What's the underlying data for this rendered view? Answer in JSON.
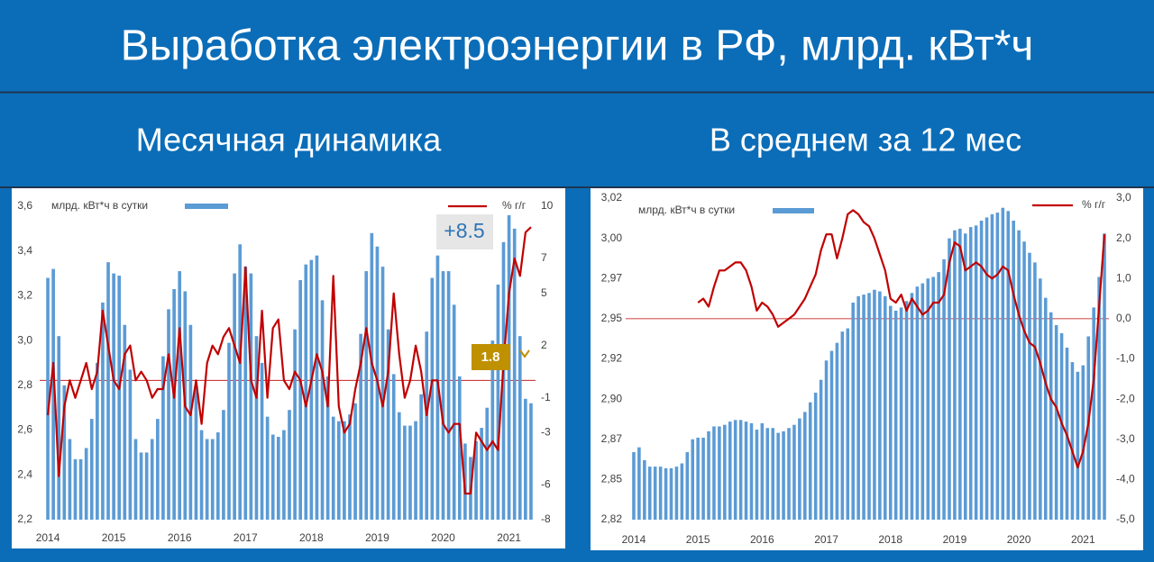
{
  "title": "Выработка электроэнергии в РФ, млрд. кВт*ч",
  "chart_data": [
    {
      "type": "combo",
      "title": "Месячная динамика",
      "categories": [
        "2014",
        null,
        null,
        null,
        null,
        null,
        null,
        null,
        null,
        null,
        null,
        null,
        "2015",
        null,
        null,
        null,
        null,
        null,
        null,
        null,
        null,
        null,
        null,
        null,
        "2016",
        null,
        null,
        null,
        null,
        null,
        null,
        null,
        null,
        null,
        null,
        null,
        "2017",
        null,
        null,
        null,
        null,
        null,
        null,
        null,
        null,
        null,
        null,
        null,
        "2018",
        null,
        null,
        null,
        null,
        null,
        null,
        null,
        null,
        null,
        null,
        null,
        "2019",
        null,
        null,
        null,
        null,
        null,
        null,
        null,
        null,
        null,
        null,
        null,
        "2020",
        null,
        null,
        null,
        null,
        null,
        null,
        null,
        null,
        null,
        null,
        null,
        "2021",
        null,
        null,
        null,
        null
      ],
      "series": [
        {
          "name": "млрд. кВт*ч в сутки",
          "type": "bar",
          "color": "#5b9bd5",
          "values": [
            3.28,
            3.32,
            3.02,
            2.8,
            2.56,
            2.47,
            2.47,
            2.52,
            2.65,
            2.9,
            3.17,
            3.35,
            3.3,
            3.29,
            3.07,
            2.87,
            2.56,
            2.5,
            2.5,
            2.56,
            2.65,
            2.93,
            3.14,
            3.23,
            3.31,
            3.22,
            3.07,
            2.8,
            2.6,
            2.56,
            2.56,
            2.59,
            2.69,
            2.99,
            3.3,
            3.43,
            3.33,
            3.3,
            3.02,
            2.9,
            2.66,
            2.58,
            2.57,
            2.6,
            2.69,
            3.05,
            3.27,
            3.34,
            3.36,
            3.38,
            3.18,
            2.84,
            2.66,
            2.64,
            2.64,
            2.67,
            2.72,
            3.03,
            3.31,
            3.48,
            3.42,
            3.33,
            3.05,
            2.85,
            2.68,
            2.62,
            2.62,
            2.64,
            2.76,
            3.04,
            3.28,
            3.38,
            3.31,
            3.31,
            3.16,
            2.84,
            2.54,
            2.48,
            2.55,
            2.61,
            2.7,
            3.0,
            3.25,
            3.44,
            3.56,
            3.5,
            3.02,
            2.74,
            2.72
          ]
        },
        {
          "name": "% г/г",
          "type": "line",
          "axis": "y2",
          "color": "#c00000",
          "values": [
            -2,
            1,
            -5.5,
            -1.5,
            0,
            -1,
            0,
            1,
            -0.5,
            0.5,
            4,
            2,
            0,
            -0.5,
            1.5,
            2,
            0,
            0.5,
            0,
            -1,
            -0.5,
            -0.5,
            1.5,
            -1,
            3,
            -1.5,
            -2,
            0,
            -2.5,
            1,
            2,
            1.5,
            2.5,
            3,
            2,
            1,
            6.5,
            0,
            -1,
            4,
            -1,
            3,
            3.5,
            0,
            -0.5,
            0.5,
            0,
            -1.5,
            0,
            1.5,
            0.5,
            -1.5,
            6,
            -1.5,
            -3,
            -2.5,
            -0.5,
            1,
            3,
            1,
            0,
            -1.5,
            0.5,
            5,
            1.5,
            -1,
            0,
            2,
            0.5,
            -2,
            0,
            0,
            -2.5,
            -3,
            -2.5,
            -2.5,
            -6.5,
            -6.5,
            -3,
            -3.5,
            -4,
            -3.5,
            -4,
            1,
            5,
            7,
            6,
            8.5,
            8.8
          ]
        }
      ],
      "ylim": [
        2.2,
        3.6
      ],
      "yticks": [
        {
          "value": 2.2,
          "label": "2,2"
        },
        {
          "value": 2.4,
          "label": "2,4"
        },
        {
          "value": 2.6,
          "label": "2,6"
        },
        {
          "value": 2.8,
          "label": "2,8"
        },
        {
          "value": 3.0,
          "label": "3,0"
        },
        {
          "value": 3.2,
          "label": "3,2"
        },
        {
          "value": 3.4,
          "label": "3,4"
        },
        {
          "value": 3.6,
          "label": "3,6"
        }
      ],
      "y2lim": [
        -8,
        10
      ],
      "y2ticks": [
        -8,
        -6,
        -3,
        -1,
        2,
        5,
        7,
        10
      ],
      "annotations": [
        "+8.5",
        "1.8"
      ]
    },
    {
      "type": "combo",
      "title": "В среднем за 12 мес",
      "categories": [
        "2014",
        null,
        null,
        null,
        null,
        null,
        null,
        null,
        null,
        null,
        null,
        null,
        "2015",
        null,
        null,
        null,
        null,
        null,
        null,
        null,
        null,
        null,
        null,
        null,
        "2016",
        null,
        null,
        null,
        null,
        null,
        null,
        null,
        null,
        null,
        null,
        null,
        "2017",
        null,
        null,
        null,
        null,
        null,
        null,
        null,
        null,
        null,
        null,
        null,
        "2018",
        null,
        null,
        null,
        null,
        null,
        null,
        null,
        null,
        null,
        null,
        null,
        "2019",
        null,
        null,
        null,
        null,
        null,
        null,
        null,
        null,
        null,
        null,
        null,
        "2020",
        null,
        null,
        null,
        null,
        null,
        null,
        null,
        null,
        null,
        null,
        null,
        "2021",
        null,
        null,
        null,
        null
      ],
      "series": [
        {
          "name": "млрд. кВт*ч в сутки",
          "type": "bar",
          "color": "#5b9bd5",
          "values": [
            2.862,
            2.865,
            2.857,
            2.853,
            2.853,
            2.853,
            2.852,
            2.852,
            2.853,
            2.855,
            2.862,
            2.87,
            2.871,
            2.871,
            2.875,
            2.878,
            2.878,
            2.879,
            2.881,
            2.882,
            2.882,
            2.881,
            2.88,
            2.876,
            2.88,
            2.877,
            2.877,
            2.874,
            2.875,
            2.877,
            2.879,
            2.883,
            2.887,
            2.893,
            2.899,
            2.907,
            2.919,
            2.925,
            2.93,
            2.937,
            2.939,
            2.955,
            2.959,
            2.96,
            2.961,
            2.963,
            2.962,
            2.959,
            2.953,
            2.95,
            2.952,
            2.956,
            2.961,
            2.965,
            2.967,
            2.97,
            2.971,
            2.974,
            2.982,
            2.995,
            3.0,
            3.001,
            2.998,
            3.002,
            3.003,
            3.006,
            3.008,
            3.01,
            3.011,
            3.014,
            3.012,
            3.006,
            3.0,
            2.993,
            2.986,
            2.98,
            2.97,
            2.958,
            2.949,
            2.941,
            2.936,
            2.927,
            2.918,
            2.912,
            2.916,
            2.934,
            2.952,
            2.971,
            2.998
          ]
        },
        {
          "name": "% г/г",
          "type": "line",
          "axis": "y2",
          "color": "#c00000",
          "values": [
            null,
            null,
            null,
            null,
            null,
            null,
            null,
            null,
            null,
            null,
            null,
            null,
            0.4,
            0.5,
            0.3,
            0.8,
            1.2,
            1.2,
            1.3,
            1.4,
            1.4,
            1.2,
            0.8,
            0.2,
            0.4,
            0.3,
            0.1,
            -0.2,
            -0.1,
            0.0,
            0.1,
            0.3,
            0.5,
            0.8,
            1.1,
            1.7,
            2.1,
            2.1,
            1.5,
            2.0,
            2.6,
            2.7,
            2.6,
            2.4,
            2.3,
            2.0,
            1.6,
            1.2,
            0.5,
            0.4,
            0.6,
            0.2,
            0.5,
            0.3,
            0.1,
            0.2,
            0.4,
            0.4,
            0.6,
            1.4,
            1.9,
            1.8,
            1.2,
            1.3,
            1.4,
            1.3,
            1.1,
            1.0,
            1.1,
            1.3,
            1.2,
            0.6,
            0.1,
            -0.3,
            -0.6,
            -0.7,
            -1.1,
            -1.6,
            -2.0,
            -2.2,
            -2.6,
            -2.9,
            -3.3,
            -3.7,
            -3.3,
            -2.6,
            -1.5,
            0.3,
            2.1
          ]
        }
      ],
      "ylim": [
        2.82,
        3.02
      ],
      "yticks": [
        {
          "value": 2.82,
          "label": "2,82"
        },
        {
          "value": 2.845,
          "label": "2,85"
        },
        {
          "value": 2.87,
          "label": "2,87"
        },
        {
          "value": 2.895,
          "label": "2,90"
        },
        {
          "value": 2.92,
          "label": "2,92"
        },
        {
          "value": 2.945,
          "label": "2,95"
        },
        {
          "value": 2.97,
          "label": "2,97"
        },
        {
          "value": 2.995,
          "label": "3,00"
        },
        {
          "value": 3.02,
          "label": "3,02"
        }
      ],
      "y2lim": [
        -5,
        3
      ],
      "y2ticks": [
        {
          "value": -5,
          "label": "-5,0"
        },
        {
          "value": -4,
          "label": "-4,0"
        },
        {
          "value": -3,
          "label": "-3,0"
        },
        {
          "value": -2,
          "label": "-2,0"
        },
        {
          "value": -1,
          "label": "-1,0"
        },
        {
          "value": 0,
          "label": "0,0"
        },
        {
          "value": 1,
          "label": "1,0"
        },
        {
          "value": 2,
          "label": "2,0"
        },
        {
          "value": 3,
          "label": "3,0"
        }
      ]
    }
  ]
}
